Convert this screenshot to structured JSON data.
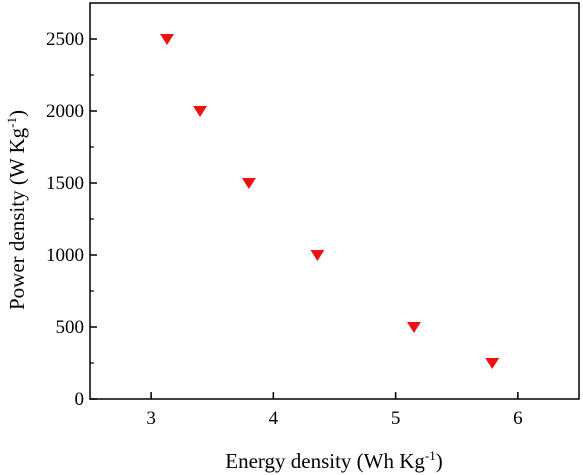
{
  "chart_data": {
    "type": "scatter",
    "title": "",
    "xlabel": "Energy density (Wh Kg",
    "xlabel_sup": "-1",
    "xlabel_end": ")",
    "ylabel": "Power density (W Kg",
    "ylabel_sup": "-1",
    "ylabel_end": ")",
    "xlim": [
      2.5,
      6.5
    ],
    "ylim": [
      0,
      2750
    ],
    "xticks": [
      3,
      4,
      5,
      6
    ],
    "yticks": [
      0,
      500,
      1000,
      1500,
      2000,
      2500
    ],
    "grid": false,
    "legend": "none",
    "marker": "triangle-down",
    "series": [
      {
        "color": "#ee1111",
        "points": [
          {
            "x": 3.13,
            "y": 2500
          },
          {
            "x": 3.4,
            "y": 2000
          },
          {
            "x": 3.8,
            "y": 1500
          },
          {
            "x": 4.36,
            "y": 1000
          },
          {
            "x": 5.15,
            "y": 500
          },
          {
            "x": 5.79,
            "y": 250
          }
        ]
      }
    ]
  }
}
